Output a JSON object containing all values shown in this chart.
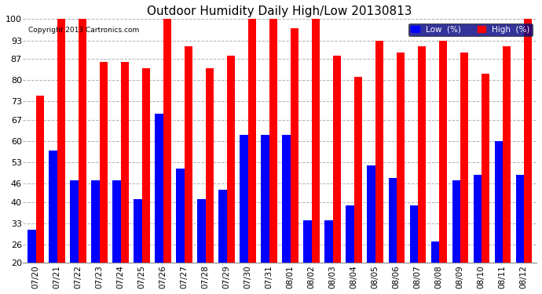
{
  "title": "Outdoor Humidity Daily High/Low 20130813",
  "copyright": "Copyright 2013 Cartronics.com",
  "categories": [
    "07/20",
    "07/21",
    "07/22",
    "07/23",
    "07/24",
    "07/25",
    "07/26",
    "07/27",
    "07/28",
    "07/29",
    "07/30",
    "07/31",
    "08/01",
    "08/02",
    "08/03",
    "08/04",
    "08/05",
    "08/06",
    "08/07",
    "08/08",
    "08/09",
    "08/10",
    "08/11",
    "08/12"
  ],
  "high": [
    75,
    100,
    100,
    86,
    86,
    84,
    100,
    91,
    84,
    88,
    100,
    100,
    97,
    100,
    88,
    81,
    93,
    89,
    91,
    93,
    89,
    82,
    91,
    100
  ],
  "low": [
    31,
    57,
    47,
    47,
    47,
    41,
    69,
    51,
    41,
    44,
    62,
    62,
    62,
    34,
    34,
    39,
    52,
    48,
    39,
    27,
    47,
    49,
    60,
    49
  ],
  "ylim": [
    20,
    100
  ],
  "ybase": 20,
  "yticks": [
    20,
    26,
    33,
    40,
    46,
    53,
    60,
    67,
    73,
    80,
    87,
    93,
    100
  ],
  "bar_width": 0.38,
  "high_color": "#ff0000",
  "low_color": "#0000ff",
  "bg_color": "#ffffff",
  "grid_color": "#b0b0b0",
  "legend_low_label": "Low  (%)",
  "legend_high_label": "High  (%)"
}
